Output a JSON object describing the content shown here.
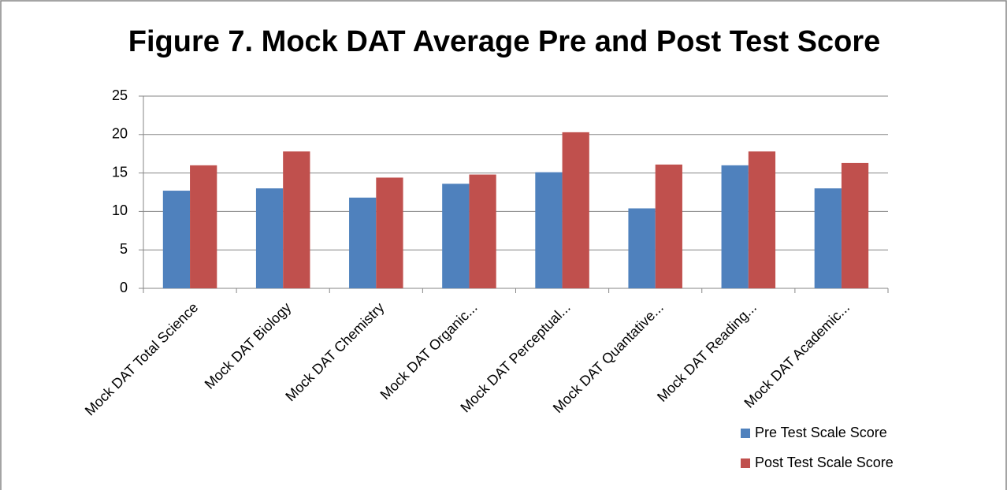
{
  "chart_data": {
    "type": "bar",
    "title": "Figure 7. Mock DAT Average Pre and Post Test Score",
    "categories": [
      "Mock DAT Total Science",
      "Mock DAT Biology",
      "Mock DAT Chemistry",
      "Mock DAT Organic...",
      "Mock DAT Perceptual...",
      "Mock DAT Quantative...",
      "Mock DAT Reading...",
      "Mock DAT Academic..."
    ],
    "series": [
      {
        "name": "Pre Test Scale Score",
        "color": "#4f81bd",
        "values": [
          12.7,
          13.0,
          11.8,
          13.6,
          15.1,
          10.4,
          16.0,
          13.0
        ]
      },
      {
        "name": "Post Test Scale Score",
        "color": "#c0504d",
        "values": [
          16.0,
          17.8,
          14.4,
          14.8,
          20.3,
          16.1,
          17.8,
          16.3
        ]
      }
    ],
    "ylim": [
      0,
      25
    ],
    "yticks": [
      0,
      5,
      10,
      15,
      20,
      25
    ],
    "grid": true,
    "legend": "bottom-right"
  }
}
